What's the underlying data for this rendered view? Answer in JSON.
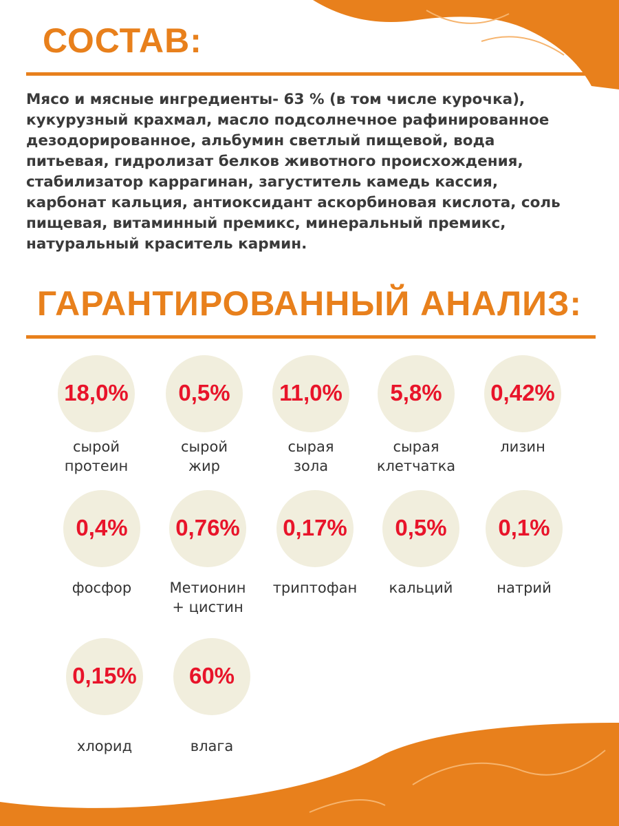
{
  "composition": {
    "title": "СОСТАВ:",
    "lines": [
      "Мясо и мясные ингредиенты- 63 % (в том числе курочка),",
      "кукурузный крахмал, масло подсолнечное рафинированное",
      "дезодорированное, альбумин светлый пищевой, вода",
      "питьевая, гидролизат белков животного происхождения,",
      "стабилизатор каррагинан, загуститель камедь кассия,",
      "карбонат кальция, антиоксидант аскорбиновая кислота, соль",
      "пищевая, витаминный премикс, минеральный премикс,",
      "натуральный краситель кармин."
    ]
  },
  "analysis": {
    "title": "ГАРАНТИРОВАННЫЙ АНАЛИЗ:",
    "items": [
      {
        "value": "18,0%",
        "label": [
          "сырой",
          "протеин"
        ]
      },
      {
        "value": "0,5%",
        "label": [
          "сырой",
          "жир"
        ]
      },
      {
        "value": "11,0%",
        "label": [
          "сырая",
          "зола"
        ]
      },
      {
        "value": "5,8%",
        "label": [
          "сырая",
          "клетчатка"
        ]
      },
      {
        "value": "0,42%",
        "label": [
          "лизин"
        ]
      },
      {
        "value": "0,4%",
        "label": [
          "фосфор"
        ]
      },
      {
        "value": "0,76%",
        "label": [
          "Метионин",
          "+ цистин"
        ]
      },
      {
        "value": "0,17%",
        "label": [
          "триптофан"
        ]
      },
      {
        "value": "0,5%",
        "label": [
          "кальций"
        ]
      },
      {
        "value": "0,1%",
        "label": [
          "натрий"
        ]
      },
      {
        "value": "0,15%",
        "label": [
          "хлорид"
        ]
      },
      {
        "value": "60%",
        "label": [
          "влага"
        ]
      }
    ]
  }
}
